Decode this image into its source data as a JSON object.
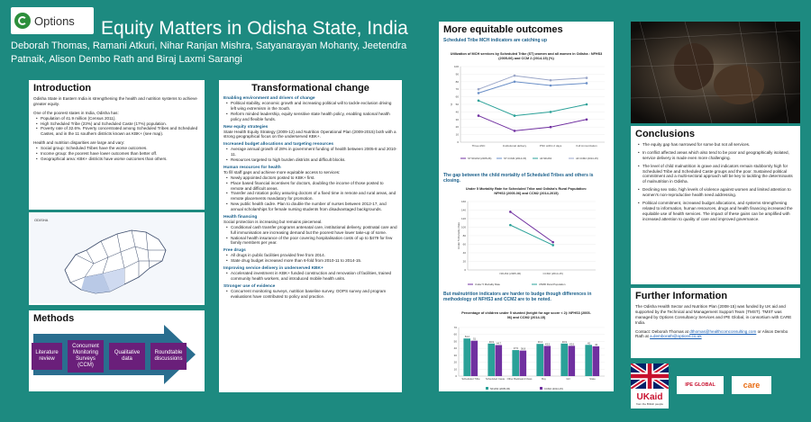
{
  "logo": {
    "name": "Options"
  },
  "title": "Equity Matters in Odisha State, India",
  "authors": "Deborah Thomas, Ramani Atkuri, Nihar Ranjan Mishra, Satyanarayan Mohanty, Jeetendra Patnaik, Alison Dembo Rath and Biraj Laxmi Sarangi",
  "intro": {
    "heading": "Introduction",
    "p1": "Odisha State in Eastern India is strengthening the health and nutrition systems to achieve greater equity.",
    "p2": "One of the poorest states in India, Odisha has:",
    "list1": [
      "Population of 41.9 million (Census 2011).",
      "High Scheduled Tribe (23%) and Scheduled Caste (17%) population.",
      "Poverty rate of 32.6%. Poverty concentrated among Scheduled Tribes and Scheduled Castes, and in the 11 southern districts known as KBK+ (see map)."
    ],
    "p3": "Health and nutrition disparities are large and vary:",
    "list2": [
      "Social group: Scheduled Tribes have the worse outcomes.",
      "Income group: the poorest have lower outcomes than better off.",
      "Geographical area: KBK+ districts have worse outcomes than others."
    ],
    "map_label": "ODISHA"
  },
  "methods": {
    "heading": "Methods",
    "steps": [
      "Literature review",
      "Concurrent Monitoring Surveys (CCM)",
      "Qualitative data",
      "Roundtable discussions"
    ]
  },
  "transform": {
    "heading": "Transformational change",
    "sections": [
      {
        "title": "Enabling environment and drivers of change",
        "text": "",
        "bullets": [
          "Political stability, economic growth and increasing political will to tackle exclusion driving left wing extremism in the South.",
          "Reform minded leadership, equity sensitive state health policy, enabling national health policy and flexible funds."
        ]
      },
      {
        "title": "New equity strategies",
        "text": "State Health Equity Strategy (2009-12) and Nutrition Operational Plan (2009-2015) both with a strong geographical focus on the underserved KBK+.",
        "bullets": []
      },
      {
        "title": "Increased budget allocations and targeting resources",
        "text": "",
        "bullets": [
          "Average annual growth of 28% in government funding of health between 2005-8 and 2010-11.",
          "Resources targeted to high burden districts and difficult blocks."
        ]
      },
      {
        "title": "Human resources for health",
        "text": "To fill staff gaps and achieve more equitable access to services:",
        "bullets": [
          "Newly appointed doctors posted to KBK+ first.",
          "Place based financial incentives for doctors, doubling the income of those posted to remote and difficult areas.",
          "Transfer and rotation policy assuring doctors of a fixed time in remote and rural areas, and remote placements mandatory for promotion.",
          "New public health cadre. Plan to double the number of nurses between 2012-17, and annual scholarships for female nursing students from disadvantaged backgrounds."
        ]
      },
      {
        "title": "Health financing",
        "text": "Social protection is increasing but remains piecemeal.",
        "bullets": [
          "Conditional cash transfer programs antenatal care, institutional delivery, postnatal care and full immunisation are increasing demand but the poorest have lower take-up of some.",
          "National health insurance of the poor covering hospitalisation costs of up to $479 for few family members per year."
        ]
      },
      {
        "title": "Free drugs",
        "text": "",
        "bullets": [
          "All drugs in public facilities provided free from 2014.",
          "State drug budget increased more than 6-fold from 2010-11 to 2014-15."
        ]
      },
      {
        "title": "Improving service delivery in underserved KBK+",
        "text": "",
        "bullets": [
          "Accelerated investment in KBK+ funded construction and renovation of facilities, trained community health workers, and introduced mobile health units."
        ]
      },
      {
        "title": "Stronger use of evidence",
        "text": "",
        "bullets": [
          "Concurrent monitoring surveys, nutrition baseline survey, OOPS survey and program evaluations have contributed to policy and practice."
        ]
      }
    ]
  },
  "outcomes": {
    "heading": "More equitable outcomes",
    "sub1": "Scheduled Tribe MCH indicators are catching up",
    "sub2": "The gap between the child mortality of Scheduled Tribes and others is closing.",
    "sub3": "But malnutrition indicators are harder to budge though differences in methodology of NFHS3 and CCM2 are to be noted."
  },
  "charts": {
    "chart_data": [
      {
        "type": "line",
        "title": "Utilization of MCH services by Scheduled Tribe (ST) women and all women in Odisha : NFHS3 (2005-06) and CCM 2 (2014-15) (%)",
        "categories": [
          "Three ANC",
          "Institutional delivery",
          "PNC within 2 days",
          "Full immunization"
        ],
        "ylabel": "%",
        "ylim": [
          0,
          100
        ],
        "yticks": [
          "0",
          "10",
          "20",
          "30",
          "40",
          "50",
          "60",
          "70",
          "80",
          "90",
          "100"
        ],
        "series": [
          {
            "name": "ST NFHS3 (2005-06)",
            "color": "#7030a0",
            "values": [
              35,
              15,
              20,
              30
            ]
          },
          {
            "name": "ST CCM2 (2014-15)",
            "color": "#6a8fc7",
            "values": [
              65,
              80,
              75,
              78
            ]
          },
          {
            "name": "All NFHS3",
            "color": "#2aa198",
            "values": [
              55,
              35,
              40,
              50
            ]
          },
          {
            "name": "All CCM2 (2014-15)",
            "color": "#9aa6c8",
            "values": [
              70,
              88,
              82,
              85
            ]
          }
        ]
      },
      {
        "type": "line",
        "title": "Under 5 Mortality Rate for Scheduled Tribe and Odisha's Rural Population: NFHS3 (2005-06) and CCM2 (2014-2015)",
        "categories": [
          "NFHS3 (2005-06)",
          "CCM2 (2014-15)"
        ],
        "ylabel": "Under 5 Mortality Rate",
        "ylim": [
          0,
          160
        ],
        "yticks": [
          "0",
          "20",
          "40",
          "60",
          "80",
          "100",
          "120",
          "140",
          "160"
        ],
        "series": [
          {
            "name": "Under 5 Mortality Rate",
            "color": "#7030a0",
            "values": [
              136,
              65
            ]
          },
          {
            "name": "U5MR Rural Population",
            "color": "#2aa198",
            "values": [
              105,
              58
            ]
          }
        ]
      },
      {
        "type": "bar",
        "title": "Percentage of children under 5 stunted (height for age score < 2): NFHS3 (2005-06) and CCM2 (2014-15)",
        "categories": [
          "Scheduled Tribe",
          "Scheduled Caste",
          "Other Backward Class",
          "Boy",
          "Girl",
          "State"
        ],
        "ylim": [
          0,
          70
        ],
        "yticks": [
          "0",
          "10",
          "20",
          "30",
          "40",
          "50",
          "60",
          "70"
        ],
        "series": [
          {
            "name": "NFHS3 (2005-06)",
            "color": "#2aa198",
            "values": [
              54.2,
              46.9,
              37.5,
              46.4,
              46.9,
              45
            ]
          },
          {
            "name": "CCM2 (2014-15)",
            "color": "#7030a0",
            "values": [
              51,
              44.7,
              36.8,
              43.5,
              43.6,
              43
            ]
          }
        ],
        "labels": [
          [
            "54.2",
            "51"
          ],
          [
            "46.9",
            "44.7"
          ],
          [
            "37.5",
            "36.8"
          ],
          [
            "46.4",
            "43.5"
          ],
          [
            "46.9",
            "43.6"
          ],
          [
            "45",
            "43"
          ]
        ]
      }
    ]
  },
  "conclusions": {
    "heading": "Conclusions",
    "bullets": [
      "The equity gap has narrowed for some but not all services.",
      "In conflict affected areas which also tend to be poor and geographically isolated, service delivery is made even more challenging.",
      "The level of child malnutrition is grave and indicators remain stubbornly high for Scheduled Tribe and Scheduled Caste groups and the poor. Sustained political commitment and a multi-sectoral approach will be key to tackling the determinants of malnutrition in Odisha.",
      "Declining sex ratio, high levels of violence against women and limited attention to women's non-reproductive health need addressing.",
      "Political commitment, increased budget allocations, and systems strengthening related to information, human resources, drugs and health financing increased the equitable use of health services. The impact of these gains can be amplified with increased attention to quality of care and improved governance."
    ]
  },
  "further": {
    "heading": "Further Information",
    "p1": "The Odisha Health Sector and Nutrition Plan (2008-15) was funded by UK aid and supported by the Technical and Management Support Team (TMST). TMST was managed by Options Consultancy Services and IPE Global, in consortium with CARE India.",
    "p2": "Contact: Deborah Thomas at",
    "email1": "dthomas@healthcomconsulting.com",
    "p3": "or Alison Dembo Rath at",
    "email2": "a.demborath@options.co.uk"
  },
  "footer_logos": {
    "ukaid": "UKaid",
    "ukaid_sub": "from the British people",
    "ipe": "IPE GLOBAL",
    "care": "care"
  }
}
